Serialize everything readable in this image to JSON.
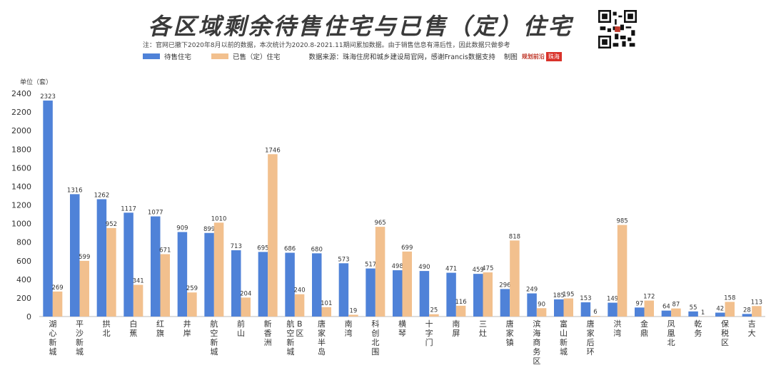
{
  "title": "各区域剩余待售住宅与已售（定）住宅",
  "note": "注：官网已撤下2020年8月以前的数据，本次统计为2020.8-2021.11期间累加数据。由于销售信息有滞后性，因此数据只做参考",
  "source": "数据来源：珠海住房和城乡建设局官网，感谢Francis数据支持",
  "credit": "制图",
  "logo_text": "规划前沿",
  "logo_box": "珠海",
  "chart_data": {
    "type": "bar",
    "unit_label": "单位（套）",
    "ylim": [
      0,
      2400
    ],
    "yticks": [
      0,
      200,
      400,
      600,
      800,
      1000,
      1200,
      1400,
      1600,
      1800,
      2000,
      2200,
      2400
    ],
    "grid": false,
    "legend_position": "top-left",
    "categories": [
      "湖心新城",
      "平沙新城",
      "拱北",
      "白蕉",
      "红旗",
      "井岸",
      "航空新城",
      "前山",
      "新香洲",
      "航空B区新城",
      "唐家半岛",
      "南湾",
      "科创北围",
      "横琴",
      "十字门",
      "南屏",
      "三灶",
      "唐家镇",
      "滨海商务区",
      "富山新城",
      "唐家后环",
      "洪湾",
      "金鼎",
      "凤凰北",
      "乾务",
      "保税区",
      "吉大"
    ],
    "category_lines": [
      [
        "湖",
        "心",
        "新",
        "城"
      ],
      [
        "平",
        "沙",
        "新",
        "城"
      ],
      [
        "拱",
        "北"
      ],
      [
        "白",
        "蕉"
      ],
      [
        "红",
        "旗"
      ],
      [
        "井",
        "岸"
      ],
      [
        "航",
        "空",
        "新",
        "城"
      ],
      [
        "前",
        "山"
      ],
      [
        "新",
        "香",
        "洲"
      ],
      [
        "航",
        "B",
        "空",
        "区",
        "新",
        "城"
      ],
      [
        "唐",
        "家",
        "半",
        "岛"
      ],
      [
        "南",
        "湾"
      ],
      [
        "科",
        "创",
        "北",
        "围"
      ],
      [
        "横",
        "琴"
      ],
      [
        "十",
        "字",
        "门"
      ],
      [
        "南",
        "屏"
      ],
      [
        "三",
        "灶"
      ],
      [
        "唐",
        "家",
        "镇"
      ],
      [
        "滨",
        "海",
        "商",
        "务",
        "区"
      ],
      [
        "富",
        "山",
        "新",
        "城"
      ],
      [
        "唐",
        "家",
        "后",
        "环"
      ],
      [
        "洪",
        "湾"
      ],
      [
        "金",
        "鼎"
      ],
      [
        "凤",
        "凰",
        "北"
      ],
      [
        "乾",
        "务"
      ],
      [
        "保",
        "税",
        "区"
      ],
      [
        "吉",
        "大"
      ]
    ],
    "series": [
      {
        "name": "待售住宅",
        "color": "#4f82d8",
        "values": [
          2323,
          1316,
          1262,
          1117,
          1077,
          909,
          899,
          713,
          695,
          686,
          680,
          573,
          517,
          498,
          490,
          471,
          459,
          296,
          249,
          185,
          153,
          149,
          97,
          64,
          55,
          42,
          28
        ],
        "labels": [
          "2323",
          "1316",
          "1262",
          "1117",
          "1077",
          "909",
          "899",
          "713",
          "695",
          "686",
          "680",
          "573",
          "517",
          "498",
          "490",
          "471",
          "459",
          "296",
          "249",
          "185",
          "153",
          "149",
          "97",
          "64",
          "55",
          "42",
          "28"
        ]
      },
      {
        "name": "已售（定）住宅",
        "color": "#f2c08e",
        "values": [
          269,
          599,
          952,
          341,
          671,
          259,
          1010,
          204,
          1746,
          240,
          101,
          19,
          965,
          699,
          25,
          116,
          475,
          818,
          90,
          195,
          6,
          985,
          172,
          87,
          1,
          158,
          113
        ],
        "labels": [
          "269",
          "599",
          "952",
          "341",
          "671",
          "259",
          "1010",
          "204",
          "1746",
          "240",
          "101",
          "19",
          "965",
          "699",
          "25",
          "116",
          "475",
          "818",
          "90",
          "195",
          "6",
          "985",
          "172",
          "87",
          "1",
          "158",
          "113"
        ]
      }
    ]
  }
}
